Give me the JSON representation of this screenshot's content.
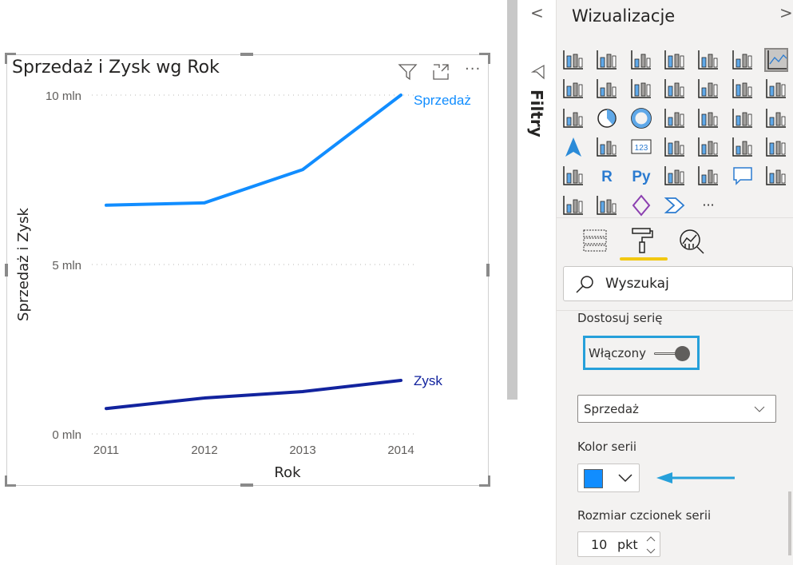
{
  "chart_data": {
    "type": "line",
    "title": "Sprzedaż i Zysk wg Rok",
    "xlabel": "Rok",
    "ylabel": "Sprzedaż i Zysk",
    "categories": [
      "2011",
      "2012",
      "2013",
      "2014"
    ],
    "yticks": [
      "0 mln",
      "5 mln",
      "10 mln"
    ],
    "ylim": [
      0,
      10
    ],
    "grid": true,
    "legend": "end-of-line labels",
    "series": [
      {
        "name": "Sprzedaż",
        "values": [
          6.75,
          6.82,
          7.8,
          10.0
        ],
        "color": "#118dff"
      },
      {
        "name": "Zysk",
        "values": [
          0.75,
          1.06,
          1.25,
          1.58
        ],
        "color": "#12239e"
      }
    ]
  },
  "filters": {
    "label": "Filtry",
    "collapse": "<"
  },
  "viz": {
    "title": "Wizualizacje",
    "expand": ">",
    "icons": [
      "stacked-bar",
      "stacked-column",
      "clustered-bar",
      "clustered-column",
      "100-stacked-bar",
      "100-stacked-column",
      "line-chart",
      "area-chart",
      "stacked-area",
      "line-stacked-column",
      "line-clustered-column",
      "ribbon",
      "waterfall",
      "funnel",
      "scatter",
      "pie",
      "donut",
      "treemap",
      "map",
      "filled-map",
      "shape-map",
      "azure-map",
      "gauge",
      "card",
      "multi-row-card",
      "kpi",
      "slicer",
      "table",
      "matrix",
      "r-visual",
      "python-visual",
      "key-influencers",
      "decomposition-tree",
      "qa",
      "smart-narrative",
      "paginated-report",
      "arcgis-map",
      "power-apps",
      "power-automate",
      "more"
    ],
    "r_label": "R",
    "py_label": "Py",
    "card_label": "123",
    "more_label": "···",
    "tabs": [
      "fields",
      "format",
      "analytics"
    ],
    "search_placeholder": "Wyszukaj",
    "section_label": "Dostosuj serię",
    "toggle_label": "Włączony",
    "series_select": "Sprzedaż",
    "color_label": "Kolor serii",
    "color_value": "#118dff",
    "font_label": "Rozmiar czcionek serii",
    "font_value": "10",
    "font_unit": "pkt",
    "accent": "#f2c811",
    "highlight": "#26a0da"
  }
}
